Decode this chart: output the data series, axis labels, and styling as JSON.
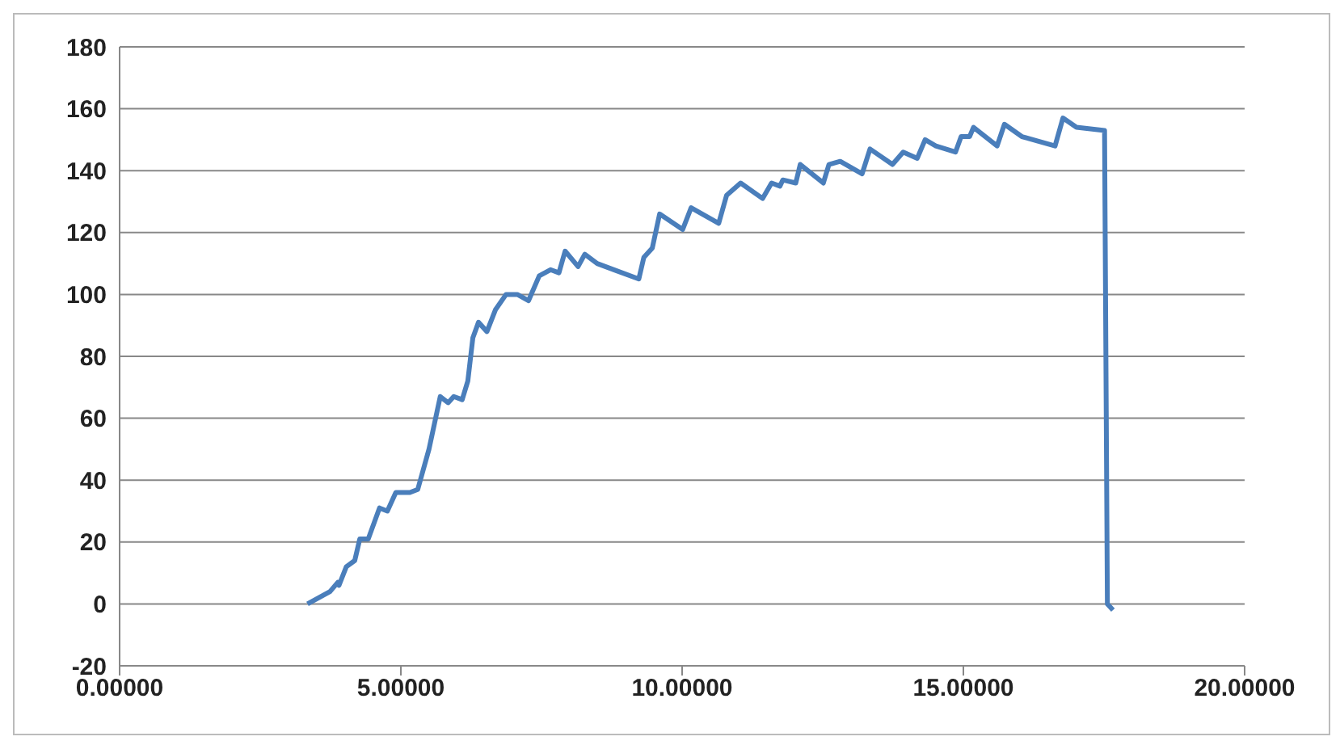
{
  "chart_data": {
    "type": "line",
    "xlim": [
      0,
      20
    ],
    "xticks": [
      {
        "value": 0,
        "label": "0.00000"
      },
      {
        "value": 5,
        "label": "5.00000"
      },
      {
        "value": 10,
        "label": "10.00000"
      },
      {
        "value": 15,
        "label": "15.00000"
      },
      {
        "value": 20,
        "label": "20.00000"
      }
    ],
    "ylim": [
      -20,
      180
    ],
    "yticks": [
      -20,
      0,
      20,
      40,
      60,
      80,
      100,
      120,
      140,
      160,
      180
    ],
    "grid": "y",
    "marker": "none",
    "line_style": "solid",
    "series": [
      {
        "color": "#4a7ebb",
        "x": [
          3.34,
          3.74,
          3.88,
          3.9,
          4.03,
          4.18,
          4.27,
          4.42,
          4.62,
          4.76,
          4.91,
          5.16,
          5.3,
          5.5,
          5.7,
          5.84,
          5.94,
          6.09,
          6.19,
          6.28,
          6.38,
          6.53,
          6.68,
          6.87,
          7.07,
          7.27,
          7.46,
          7.66,
          7.81,
          7.92,
          8.15,
          8.27,
          8.49,
          9.23,
          9.32,
          9.47,
          9.6,
          10.01,
          10.16,
          10.65,
          10.79,
          11.04,
          11.43,
          11.59,
          11.74,
          11.79,
          12.02,
          12.1,
          12.51,
          12.61,
          12.81,
          13.2,
          13.34,
          13.74,
          13.93,
          14.18,
          14.32,
          14.51,
          14.86,
          14.96,
          15.11,
          15.18,
          15.6,
          15.73,
          16.04,
          16.63,
          16.77,
          17.01,
          17.51,
          17.56,
          17.66
        ],
        "values": [
          0,
          4,
          7,
          6,
          12,
          14,
          21,
          21,
          31,
          30,
          36,
          36,
          37,
          50,
          67,
          65,
          67,
          66,
          72,
          86,
          91,
          88,
          95,
          100,
          100,
          98,
          106,
          108,
          107,
          114,
          109,
          113,
          110,
          105,
          112,
          115,
          126,
          121,
          128,
          123,
          132,
          136,
          131,
          136,
          135,
          137,
          136,
          142,
          136,
          142,
          143,
          139,
          147,
          142,
          146,
          144,
          150,
          148,
          146,
          151,
          151,
          154,
          148,
          155,
          151,
          148,
          157,
          154,
          153,
          0,
          -2
        ]
      }
    ]
  }
}
